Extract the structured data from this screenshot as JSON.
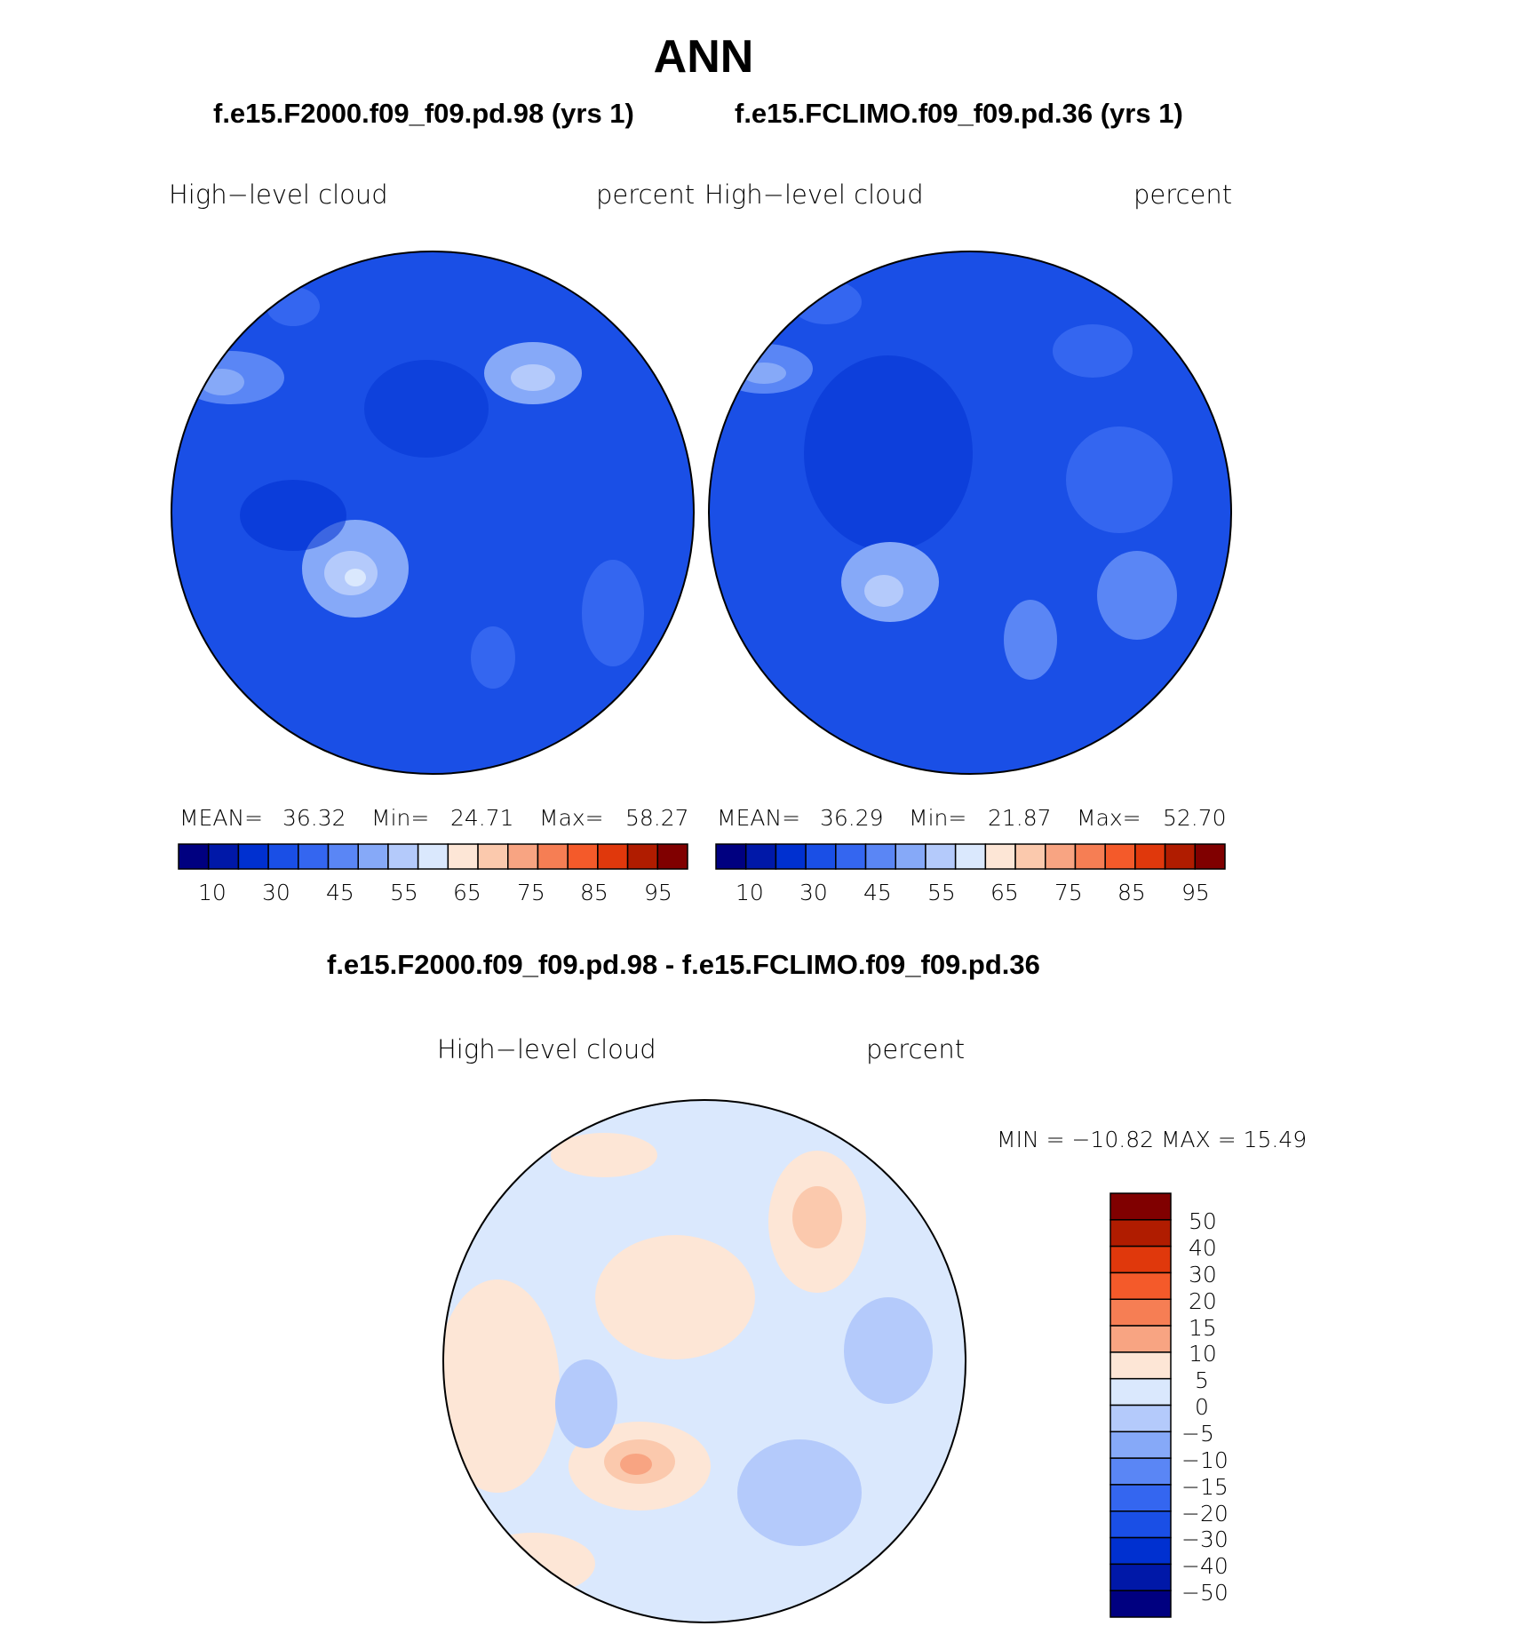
{
  "page": {
    "title": "ANN",
    "colors": {
      "seq": [
        "#000080",
        "#0018a8",
        "#0030d0",
        "#1a4fe6",
        "#3466f0",
        "#5a86f5",
        "#86a9f8",
        "#b4cafb",
        "#dae8fd",
        "#fde6d6",
        "#fbc9ad",
        "#f8a482",
        "#f67e54",
        "#f45a2a",
        "#e0380c",
        "#b01c00",
        "#800000"
      ],
      "diff": [
        "#800000",
        "#b01c00",
        "#e0380c",
        "#f45a2a",
        "#f67e54",
        "#f8a482",
        "#fde6d6",
        "#dae8fd",
        "#b4cafb",
        "#86a9f8",
        "#5a86f5",
        "#3466f0",
        "#1a4fe6",
        "#0030d0",
        "#0018a8",
        "#000080"
      ]
    }
  },
  "panels": [
    {
      "case": "f.e15.F2000.f09_f09.pd.98 (yrs 1)",
      "variable": "High−level  cloud",
      "units": "percent",
      "stats": {
        "mean_label": "MEAN=",
        "mean": "36.32",
        "min_label": "Min=",
        "min": "24.71",
        "max_label": "Max=",
        "max": "58.27"
      }
    },
    {
      "case": "f.e15.FCLIMO.f09_f09.pd.36 (yrs 1)",
      "variable": "High−level  cloud",
      "units": "percent",
      "stats": {
        "mean_label": "MEAN=",
        "mean": "36.29",
        "min_label": "Min=",
        "min": "21.87",
        "max_label": "Max=",
        "max": "52.70"
      }
    }
  ],
  "seq_colorbar": {
    "labels": [
      "10",
      "30",
      "45",
      "55",
      "65",
      "75",
      "85",
      "95"
    ]
  },
  "diff_panel": {
    "title": "f.e15.F2000.f09_f09.pd.98 - f.e15.FCLIMO.f09_f09.pd.36",
    "variable": "High−level  cloud",
    "units": "percent",
    "minmax": "MIN  =  −10.82  MAX  =    15.49",
    "colorbar_labels": [
      "50",
      "40",
      "30",
      "20",
      "15",
      "10",
      "5",
      "0",
      "−5",
      "−10",
      "−15",
      "−20",
      "−30",
      "−40",
      "−50"
    ]
  }
}
